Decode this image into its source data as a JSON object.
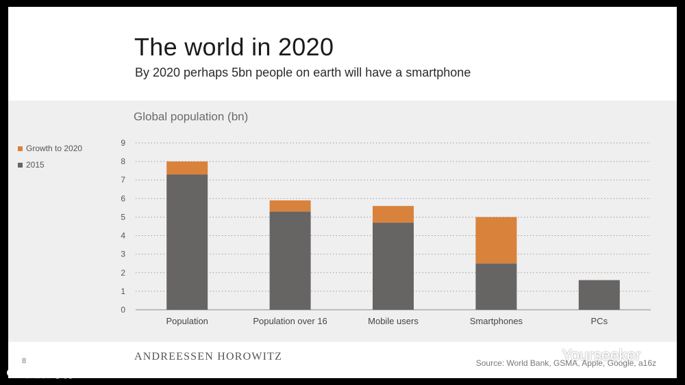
{
  "header": {
    "title": "The world in 2020",
    "subtitle": "By 2020 perhaps 5bn people on earth will have a smartphone"
  },
  "footer": {
    "page_number": "8",
    "brand": "ANDREESSEN HOROWITZ",
    "source": "Source: World Bank, GSMA, Apple, Google, a16z"
  },
  "watermarks": {
    "left": "大数跨境",
    "right": "Yourseeker"
  },
  "colors": {
    "base": "#676464",
    "growth": "#d9823b",
    "grid": "#9a9a9a"
  },
  "chart_data": {
    "type": "bar",
    "stacked": true,
    "title": "Global population (bn)",
    "categories": [
      "Population",
      "Population over 16",
      "Mobile users",
      "Smartphones",
      "PCs"
    ],
    "series": [
      {
        "name": "2015",
        "values": [
          7.3,
          5.3,
          4.7,
          2.5,
          1.6
        ]
      },
      {
        "name": "Growth to 2020",
        "values": [
          0.7,
          0.6,
          0.9,
          2.5,
          0
        ]
      }
    ],
    "legend": [
      "Growth to 2020",
      "2015"
    ],
    "y_ticks": [
      "0",
      "1",
      "2",
      "3",
      "4",
      "5",
      "6",
      "7",
      "8",
      "9"
    ],
    "ylim": [
      0,
      9
    ],
    "grid": true,
    "legend_position": "top-left"
  }
}
